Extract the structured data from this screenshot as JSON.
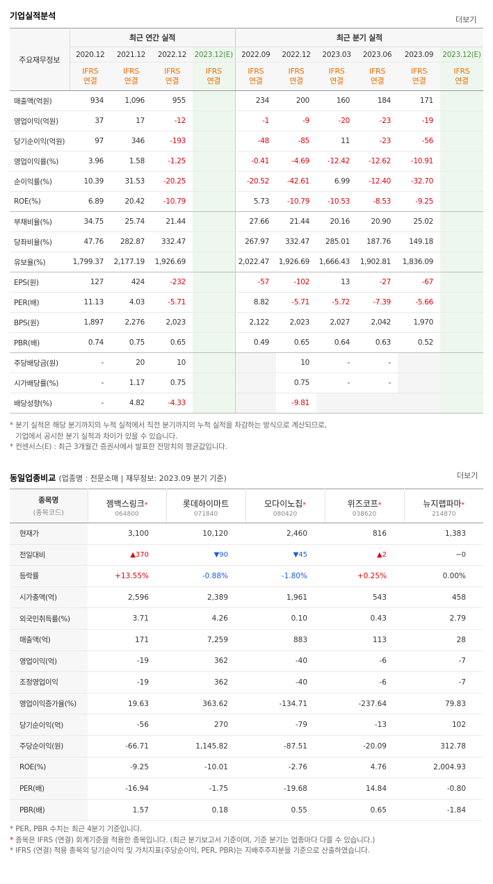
{
  "fin": {
    "title": "기업실적분석",
    "more": "더보기",
    "corner": "주요재무정보",
    "annual_header": "최근 연간 실적",
    "quarter_header": "최근 분기 실적",
    "periods": [
      "2020.12",
      "2021.12",
      "2022.12",
      "2023.12(E)",
      "2022.09",
      "2022.12",
      "2023.03",
      "2023.06",
      "2023.09",
      "2023.12(E)"
    ],
    "ifrs_top": "IFRS",
    "ifrs_bottom": "연결",
    "rows": [
      {
        "label": "매출액(억원)",
        "values": [
          "934",
          "1,096",
          "955",
          "",
          "234",
          "200",
          "160",
          "184",
          "171",
          ""
        ]
      },
      {
        "label": "영업이익(억원)",
        "values": [
          "37",
          "17",
          "-12",
          "",
          "-1",
          "-9",
          "-20",
          "-23",
          "-19",
          ""
        ]
      },
      {
        "label": "당기순이익(억원)",
        "values": [
          "97",
          "346",
          "-193",
          "",
          "-48",
          "-85",
          "11",
          "-23",
          "-56",
          ""
        ]
      },
      {
        "label": "영업이익률(%)",
        "values": [
          "3.96",
          "1.58",
          "-1.25",
          "",
          "-0.41",
          "-4.69",
          "-12.42",
          "-12.62",
          "-10.91",
          ""
        ]
      },
      {
        "label": "순이익률(%)",
        "values": [
          "10.39",
          "31.53",
          "-20.25",
          "",
          "-20.52",
          "-42.61",
          "6.99",
          "-12.40",
          "-32.70",
          ""
        ]
      },
      {
        "label": "ROE(%)",
        "values": [
          "6.89",
          "20.42",
          "-10.79",
          "",
          "5.73",
          "-10.79",
          "-10.53",
          "-8.53",
          "-9.25",
          ""
        ]
      },
      {
        "label": "부채비율(%)",
        "values": [
          "34.75",
          "25.74",
          "21.44",
          "",
          "27.66",
          "21.44",
          "20.16",
          "20.90",
          "25.02",
          ""
        ]
      },
      {
        "label": "당좌비율(%)",
        "values": [
          "47.76",
          "282.87",
          "332.47",
          "",
          "267.97",
          "332.47",
          "285.01",
          "187.76",
          "149.18",
          ""
        ]
      },
      {
        "label": "유보율(%)",
        "values": [
          "1,799.37",
          "2,177.19",
          "1,926.69",
          "",
          "2,022.47",
          "1,926.69",
          "1,666.43",
          "1,902.81",
          "1,836.09",
          ""
        ]
      },
      {
        "label": "EPS(원)",
        "values": [
          "127",
          "424",
          "-232",
          "",
          "-57",
          "-102",
          "13",
          "-27",
          "-67",
          ""
        ]
      },
      {
        "label": "PER(배)",
        "values": [
          "11.13",
          "4.03",
          "-5.71",
          "",
          "8.82",
          "-5.71",
          "-5.72",
          "-7.39",
          "-5.66",
          ""
        ]
      },
      {
        "label": "BPS(원)",
        "values": [
          "1,897",
          "2,276",
          "2,023",
          "",
          "2,122",
          "2,023",
          "2,027",
          "2,042",
          "1,970",
          ""
        ]
      },
      {
        "label": "PBR(배)",
        "values": [
          "0.74",
          "0.75",
          "0.65",
          "",
          "0.49",
          "0.65",
          "0.64",
          "0.63",
          "0.52",
          ""
        ]
      },
      {
        "label": "주당배당금(원)",
        "values": [
          "-",
          "20",
          "10",
          "",
          "",
          "10",
          "-",
          "-",
          "",
          ""
        ]
      },
      {
        "label": "시가배당률(%)",
        "values": [
          "-",
          "1.17",
          "0.75",
          "",
          "",
          "0.75",
          "-",
          "-",
          "",
          ""
        ]
      },
      {
        "label": "배당성향(%)",
        "values": [
          "-",
          "4.82",
          "-4.33",
          "",
          "",
          "-9.81",
          "",
          "",
          "",
          ""
        ]
      }
    ],
    "notes": [
      "* 분기 실적은 해당 분기까지의 누적 실적에서 직전 분기까지의 누적 실적을 차감하는 방식으로 계산되므로,",
      "기업에서 공시한 분기 실적과 차이가 있을 수 있습니다.",
      "* 컨센서스(",
      "E",
      ") : 최근 3개월간 증권사에서 발표한 전망치의 평균값입니다."
    ]
  },
  "peer": {
    "title": "동일업종비교",
    "subtitle": "(업종명 : 전문소매 | 재무정보: 2023.09 분기 기준)",
    "more": "더보기",
    "corner_main": "종목명",
    "corner_sub": "(종목코드)",
    "companies": [
      {
        "name": "젬백스링크",
        "code": "064800",
        "star": "*"
      },
      {
        "name": "롯데하이마트",
        "code": "071840",
        "star": ""
      },
      {
        "name": "모다이노칩",
        "code": "080420",
        "star": "*"
      },
      {
        "name": "위즈코프",
        "code": "038620",
        "star": "*"
      },
      {
        "name": "뉴지랩파마",
        "code": "214870",
        "star": "*"
      }
    ],
    "rows": [
      {
        "label": "현재가",
        "values": [
          "3,100",
          "10,120",
          "2,460",
          "816",
          "1,383"
        ]
      },
      {
        "label": "전일대비",
        "values": [
          "▲370",
          "▼90",
          "▼45",
          "▲2",
          "−0"
        ]
      },
      {
        "label": "등락률",
        "values": [
          "+13.55%",
          "-0.88%",
          "-1.80%",
          "+0.25%",
          "0.00%"
        ]
      },
      {
        "label": "시가총액(억)",
        "values": [
          "2,596",
          "2,389",
          "1,961",
          "543",
          "458"
        ]
      },
      {
        "label": "외국인취득률(%)",
        "values": [
          "3.71",
          "4.26",
          "0.10",
          "0.43",
          "2.79"
        ]
      },
      {
        "label": "매출액(억)",
        "values": [
          "171",
          "7,259",
          "883",
          "113",
          "28"
        ]
      },
      {
        "label": "영업이익(억)",
        "values": [
          "-19",
          "362",
          "-40",
          "-6",
          "-7"
        ]
      },
      {
        "label": "조정영업이익",
        "values": [
          "-19",
          "362",
          "-40",
          "-6",
          "-7"
        ]
      },
      {
        "label": "영업이익증가율(%)",
        "values": [
          "19.63",
          "363.62",
          "-134.71",
          "-237.64",
          "79.83"
        ]
      },
      {
        "label": "당기순이익(억)",
        "values": [
          "-56",
          "270",
          "-79",
          "-13",
          "102"
        ]
      },
      {
        "label": "주당순이익(원)",
        "values": [
          "-66.71",
          "1,145.82",
          "-87.51",
          "-20.09",
          "312.78"
        ]
      },
      {
        "label": "ROE(%)",
        "values": [
          "-9.25",
          "-10.01",
          "-2.76",
          "4.76",
          "2,004.93"
        ]
      },
      {
        "label": "PER(배)",
        "values": [
          "-16.94",
          "-1.75",
          "-19.68",
          "14.84",
          "-0.80"
        ]
      },
      {
        "label": "PBR(배)",
        "values": [
          "1.57",
          "0.18",
          "0.55",
          "0.65",
          "-1.84"
        ]
      }
    ],
    "notes": [
      "* PER, PBR 수치는 최근 4분기 기준입니다.",
      "*",
      " 종목은 IFRS (연결) 회계기준을 적용한 종목입니다. (최근 분기보고서 기준이며, 기준 분기는 업종마다 다를 수 있습니다.)",
      "* IFRS (연결) 적용 종목의 당기순이익 및 가치지표(주당순이익, PER, PBR)는 지배주주지분을 기준으로 산출하였습니다."
    ]
  }
}
